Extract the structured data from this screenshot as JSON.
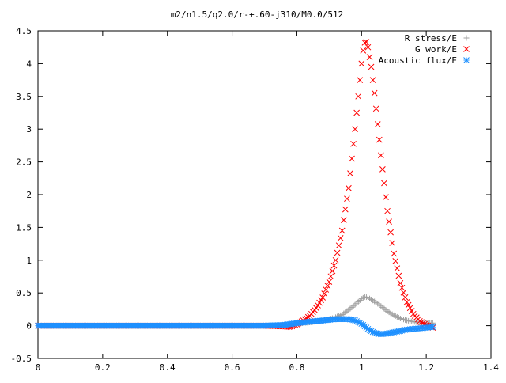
{
  "chart_data": {
    "type": "scatter",
    "title": "m2/n1.5/q2.0/r-+.60-j310/M0.0/512",
    "xlabel": "",
    "ylabel": "",
    "xlim": [
      0,
      1.4
    ],
    "ylim": [
      -0.5,
      4.5
    ],
    "x_ticks": [
      "0",
      "0.2",
      "0.4",
      "0.6",
      "0.8",
      "1",
      "1.2",
      "1.4"
    ],
    "y_ticks": [
      "-0.5",
      "0",
      "0.5",
      "1",
      "1.5",
      "2",
      "2.5",
      "3",
      "3.5",
      "4",
      "4.5"
    ],
    "grid": false,
    "legend_position": "top-right",
    "series": [
      {
        "name": "R stress/E",
        "marker": "plus",
        "color": "#a0a0a0",
        "x": [
          0.0,
          0.1,
          0.2,
          0.3,
          0.4,
          0.5,
          0.6,
          0.7,
          0.76,
          0.8,
          0.84,
          0.88,
          0.9,
          0.92,
          0.94,
          0.96,
          0.98,
          1.0,
          1.01,
          1.02,
          1.04,
          1.06,
          1.08,
          1.1,
          1.12,
          1.14,
          1.16,
          1.18,
          1.2,
          1.22
        ],
        "y": [
          0.0,
          0.0,
          0.0,
          0.0,
          0.0,
          0.0,
          0.0,
          0.0,
          0.01,
          0.03,
          0.05,
          0.08,
          0.1,
          0.13,
          0.17,
          0.24,
          0.32,
          0.41,
          0.44,
          0.43,
          0.37,
          0.3,
          0.22,
          0.16,
          0.11,
          0.08,
          0.06,
          0.05,
          0.04,
          0.04
        ]
      },
      {
        "name": "G work/E",
        "marker": "cross",
        "color": "#ff0000",
        "x": [
          0.0,
          0.1,
          0.2,
          0.3,
          0.4,
          0.5,
          0.6,
          0.7,
          0.76,
          0.78,
          0.8,
          0.82,
          0.84,
          0.86,
          0.88,
          0.9,
          0.92,
          0.94,
          0.96,
          0.98,
          1.0,
          1.005,
          1.01,
          1.015,
          1.02,
          1.03,
          1.04,
          1.06,
          1.08,
          1.1,
          1.12,
          1.14,
          1.16,
          1.18,
          1.2,
          1.22
        ],
        "y": [
          0.0,
          0.0,
          0.0,
          0.0,
          0.0,
          0.0,
          0.0,
          0.0,
          -0.01,
          -0.02,
          0.02,
          0.08,
          0.15,
          0.27,
          0.43,
          0.67,
          1.0,
          1.45,
          2.1,
          3.0,
          4.0,
          4.2,
          4.32,
          4.33,
          4.25,
          3.95,
          3.55,
          2.6,
          1.75,
          1.1,
          0.65,
          0.36,
          0.18,
          0.07,
          0.01,
          -0.03
        ]
      },
      {
        "name": "Acoustic flux/E",
        "marker": "star",
        "color": "#1e90ff",
        "x": [
          0.0,
          0.1,
          0.2,
          0.3,
          0.4,
          0.5,
          0.6,
          0.7,
          0.76,
          0.8,
          0.84,
          0.88,
          0.92,
          0.96,
          0.98,
          1.0,
          1.02,
          1.04,
          1.06,
          1.08,
          1.1,
          1.12,
          1.14,
          1.16,
          1.18,
          1.2,
          1.22
        ],
        "y": [
          0.0,
          0.0,
          0.0,
          0.0,
          0.0,
          0.0,
          0.0,
          0.0,
          0.01,
          0.04,
          0.06,
          0.08,
          0.1,
          0.1,
          0.08,
          0.03,
          -0.05,
          -0.11,
          -0.13,
          -0.12,
          -0.1,
          -0.08,
          -0.06,
          -0.05,
          -0.04,
          -0.03,
          -0.02
        ]
      }
    ]
  }
}
